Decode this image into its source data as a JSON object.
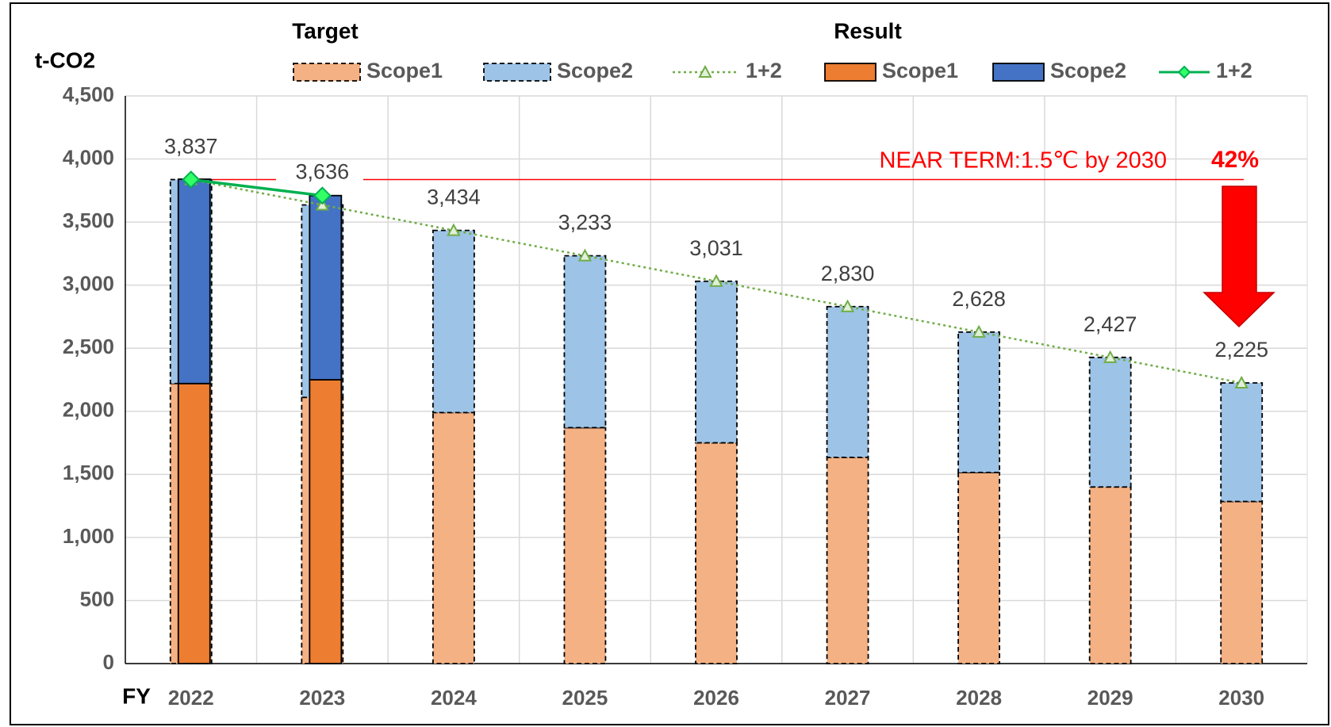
{
  "chart_data": {
    "type": "bar",
    "y_label": "t-CO2",
    "x_label": "FY",
    "legend_groups": [
      "Target",
      "Result"
    ],
    "categories": [
      "2022",
      "2023",
      "2024",
      "2025",
      "2026",
      "2027",
      "2028",
      "2029",
      "2030"
    ],
    "series": [
      {
        "name": "Scope1",
        "group": "Target",
        "kind": "bar",
        "color": "#f4b183",
        "values": [
          2220,
          2110,
          1990,
          1870,
          1750,
          1635,
          1515,
          1400,
          1285
        ]
      },
      {
        "name": "Scope2",
        "group": "Target",
        "kind": "bar",
        "color": "#9dc3e6",
        "values": [
          1617,
          1526,
          1444,
          1363,
          1281,
          1195,
          1113,
          1027,
          940
        ]
      },
      {
        "name": "1+2",
        "group": "Target",
        "kind": "line",
        "color": "#70ad47",
        "values": [
          3837,
          3636,
          3434,
          3233,
          3031,
          2830,
          2628,
          2427,
          2225
        ],
        "value_labels": [
          "3,837",
          "3,636",
          "3,434",
          "3,233",
          "3,031",
          "2,830",
          "2,628",
          "2,427",
          "2,225"
        ]
      },
      {
        "name": "Scope1",
        "group": "Result",
        "kind": "bar",
        "color": "#ed7d31",
        "values": [
          2220,
          2250,
          null,
          null,
          null,
          null,
          null,
          null,
          null
        ]
      },
      {
        "name": "Scope2",
        "group": "Result",
        "kind": "bar",
        "color": "#4472c4",
        "values": [
          1620,
          1460,
          null,
          null,
          null,
          null,
          null,
          null,
          null
        ]
      },
      {
        "name": "1+2",
        "group": "Result",
        "kind": "line",
        "color": "#00b050",
        "values": [
          3837,
          3710,
          null,
          null,
          null,
          null,
          null,
          null,
          null
        ]
      }
    ],
    "annotations": [
      "NEAR TERM:1.5℃ by 2030",
      "42%"
    ],
    "ylim": [
      0,
      4500
    ],
    "yticks": [
      0,
      500,
      {
        "value": 1000,
        "label": "1,000"
      },
      {
        "value": 1500,
        "label": "1,500"
      },
      {
        "value": 2000,
        "label": "2,000"
      },
      {
        "value": 2500,
        "label": "2,500"
      },
      {
        "value": 3000,
        "label": "3,000"
      },
      {
        "value": 3500,
        "label": "3,500"
      },
      {
        "value": 4000,
        "label": "4,000"
      },
      {
        "value": 4500,
        "label": "4,500"
      }
    ],
    "grid": true
  }
}
